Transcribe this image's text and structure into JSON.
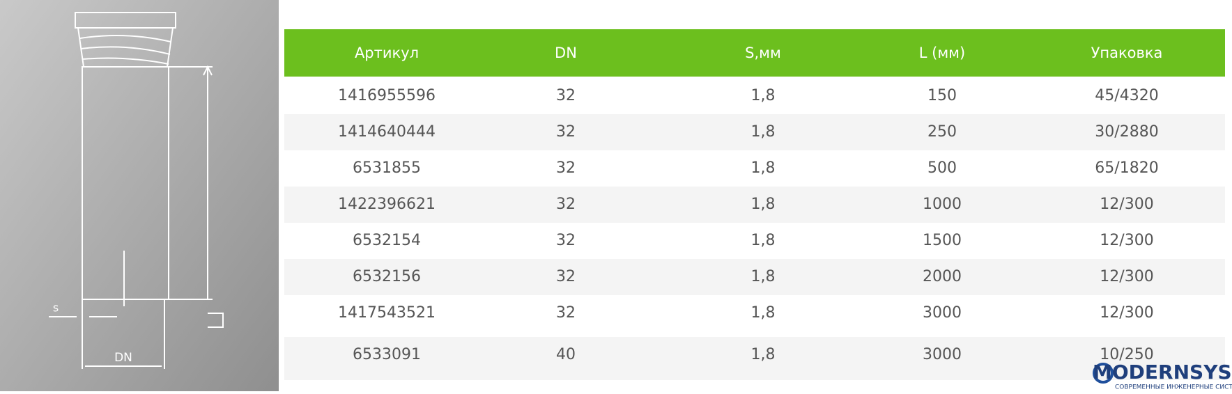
{
  "drawing": {
    "s_label": "s",
    "dn_label": "DN"
  },
  "table": {
    "headers": [
      "Артикул",
      "DN",
      "S,мм",
      "L (мм)",
      "Упаковка"
    ],
    "rows": [
      [
        "1416955596",
        "32",
        "1,8",
        "150",
        "45/4320"
      ],
      [
        "1414640444",
        "32",
        "1,8",
        "250",
        "30/2880"
      ],
      [
        "6531855",
        "32",
        "1,8",
        "500",
        "65/1820"
      ],
      [
        "1422396621",
        "32",
        "1,8",
        "1000",
        "12/300"
      ],
      [
        "6532154",
        "32",
        "1,8",
        "1500",
        "12/300"
      ],
      [
        "6532156",
        "32",
        "1,8",
        "2000",
        "12/300"
      ],
      [
        "1417543521",
        "32",
        "1,8",
        "3000",
        "12/300"
      ],
      [
        "6533091",
        "40",
        "1,8",
        "3000",
        "10/250"
      ]
    ]
  },
  "logo": {
    "name": "MODERNSYS",
    "tagline": "СОВРЕМЕННЫЕ ИНЖЕНЕРНЫЕ СИСТЕМЫ"
  }
}
